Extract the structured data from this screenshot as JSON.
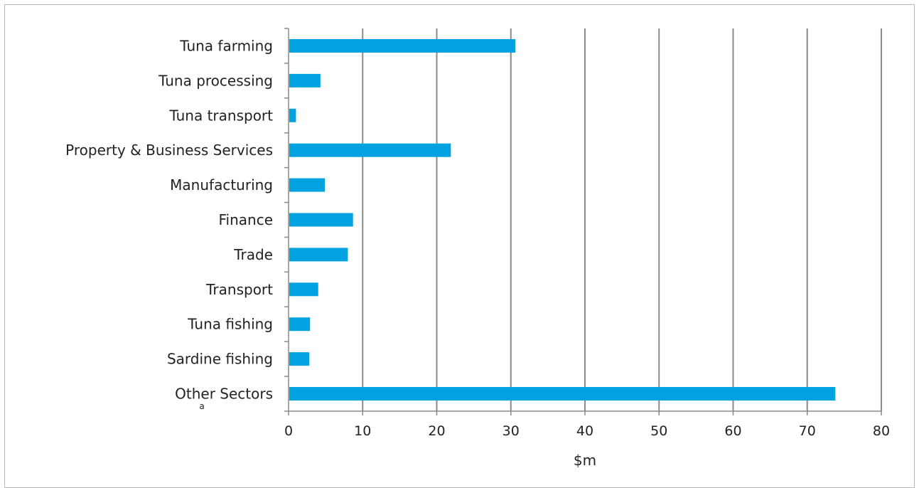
{
  "chart_data": {
    "type": "bar",
    "orientation": "horizontal",
    "categories": [
      "Tuna farming",
      "Tuna processing",
      "Tuna transport",
      "Property & Business Services",
      "Manufacturing",
      "Finance",
      "Trade",
      "Transport",
      "Tuna fishing",
      "Sardine fishing",
      "Other Sectors"
    ],
    "values": [
      30.6,
      4.3,
      1.0,
      21.9,
      4.9,
      8.7,
      8.0,
      4.0,
      2.9,
      2.8,
      73.8
    ],
    "category_note": "a",
    "xlabel": "$m",
    "ylabel": "",
    "title": "",
    "xlim": [
      0,
      80
    ],
    "xticks": [
      "0",
      "10",
      "20",
      "30",
      "40",
      "50",
      "60",
      "70",
      "80"
    ],
    "grid": "vertical",
    "legend": "none",
    "bar_color": "#00a3e0"
  }
}
